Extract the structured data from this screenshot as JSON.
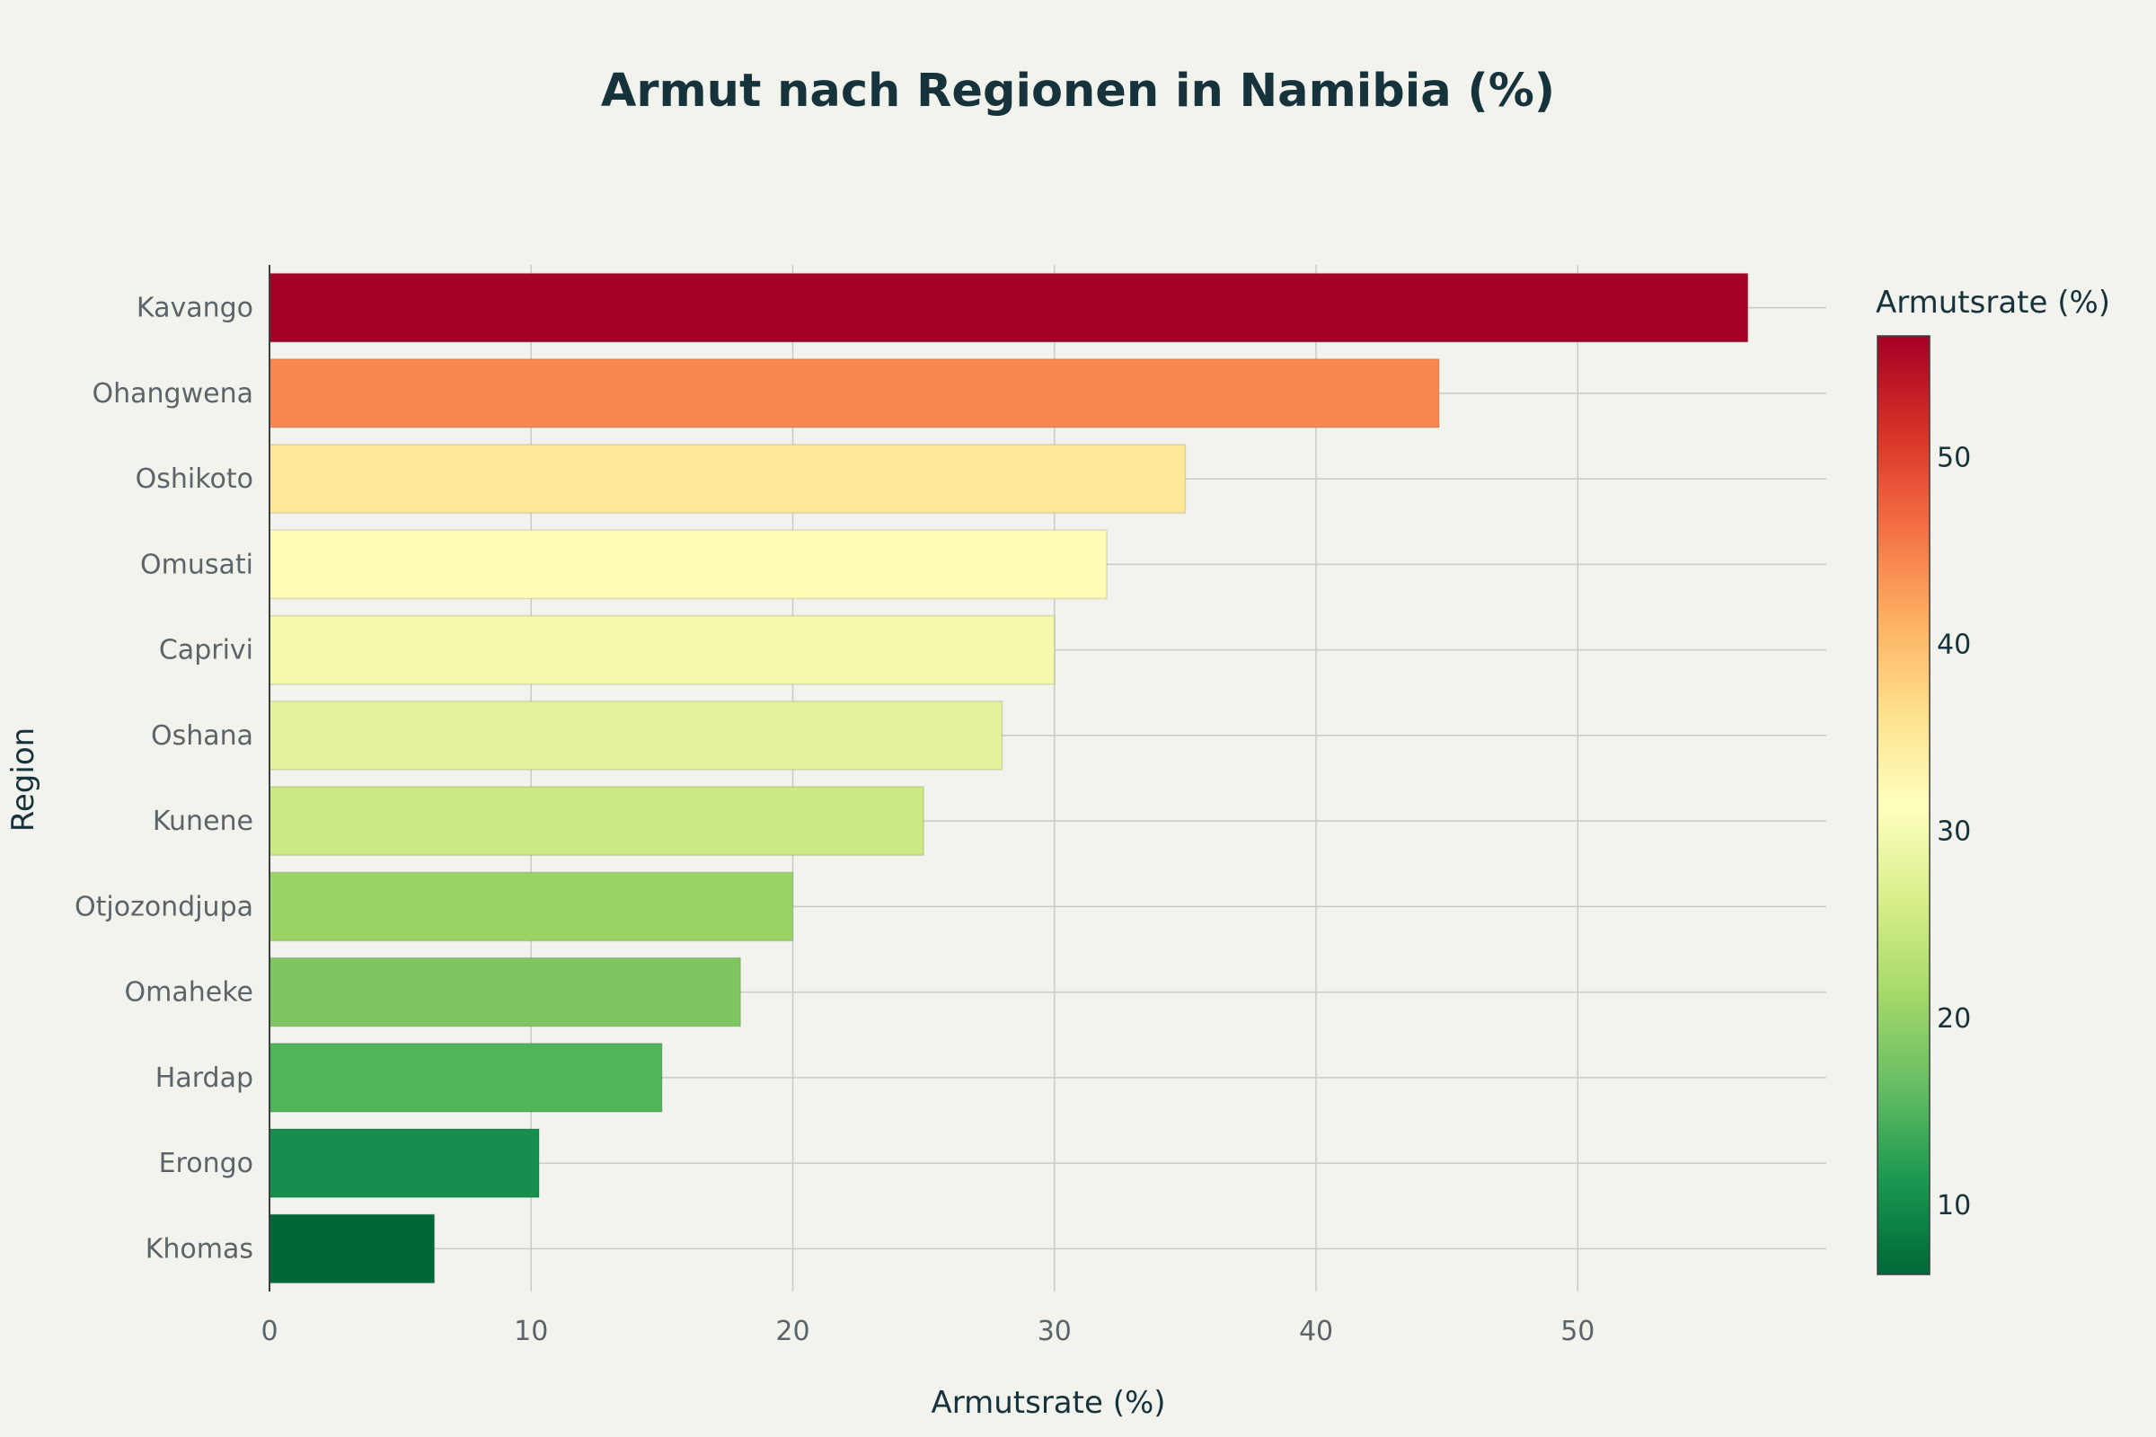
{
  "chart_data": {
    "type": "bar",
    "orientation": "horizontal",
    "title": "Armut nach Regionen in Namibia (%)",
    "xlabel": "Armutsrate (%)",
    "ylabel": "Region",
    "xlim": [
      0,
      59.5
    ],
    "xticks": [
      0,
      10,
      20,
      30,
      40,
      50
    ],
    "grid": true,
    "categories": [
      "Kavango",
      "Ohangwena",
      "Oshikoto",
      "Omusati",
      "Caprivi",
      "Oshana",
      "Kunene",
      "Otjozondjupa",
      "Omaheke",
      "Hardap",
      "Erongo",
      "Khomas"
    ],
    "values": [
      56.5,
      44.7,
      35.0,
      32.0,
      30.0,
      28.0,
      25.0,
      20.0,
      18.0,
      15.0,
      10.3,
      6.3
    ],
    "colors": [
      "#a50026",
      "#f88750",
      "#fee799",
      "#fefcb6",
      "#f4f9ab",
      "#e4f29e",
      "#cce983",
      "#9ad467",
      "#7dc661",
      "#50b459",
      "#168e4d",
      "#006837"
    ],
    "colorbar": {
      "title": "Armutsrate (%)",
      "ticks": [
        10,
        20,
        30,
        40,
        50
      ],
      "range": [
        6.3,
        56.5
      ],
      "colorscale": "RdYlGn reversed"
    }
  }
}
